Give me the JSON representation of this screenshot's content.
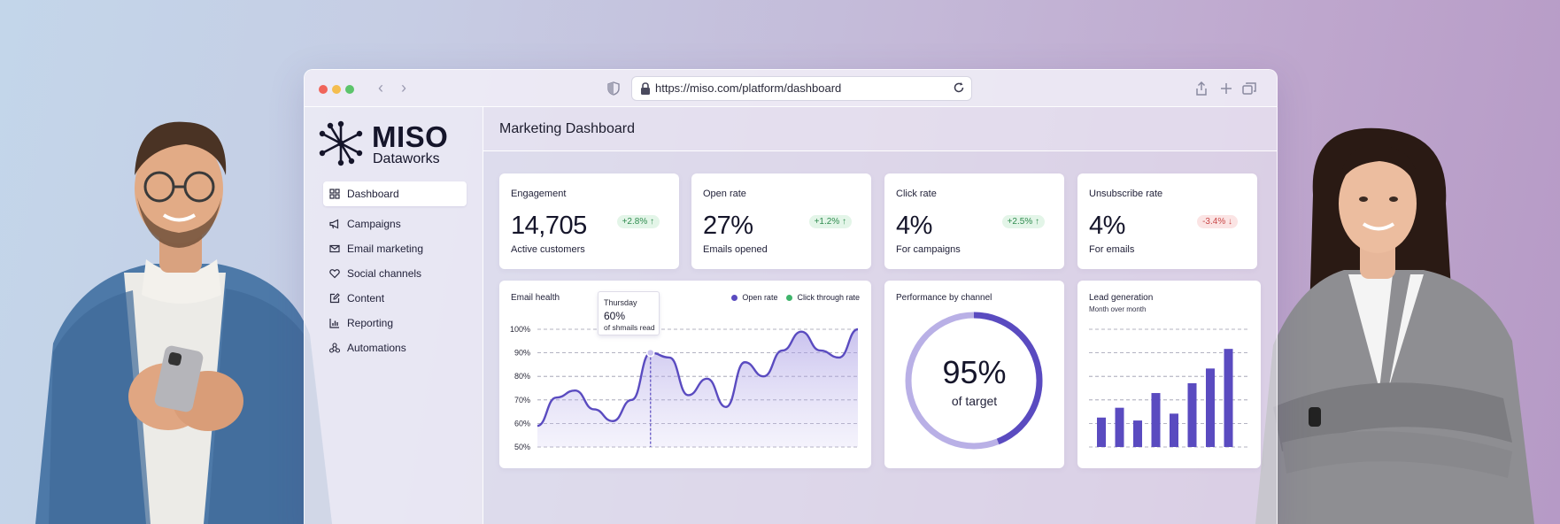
{
  "browser": {
    "url": "https://miso.com/platform/dashboard"
  },
  "brand": {
    "name": "MISO",
    "subtitle": "Dataworks"
  },
  "sidebar": {
    "items": [
      {
        "label": "Dashboard",
        "icon": "grid-icon",
        "active": true
      },
      {
        "label": "Campaigns",
        "icon": "megaphone-icon"
      },
      {
        "label": "Email marketing",
        "icon": "envelope-icon"
      },
      {
        "label": "Social channels",
        "icon": "heart-icon"
      },
      {
        "label": "Content",
        "icon": "edit-icon"
      },
      {
        "label": "Reporting",
        "icon": "bar-chart-icon"
      },
      {
        "label": "Automations",
        "icon": "nodes-icon"
      }
    ]
  },
  "header": {
    "title": "Marketing Dashboard"
  },
  "stats": [
    {
      "title": "Engagement",
      "value": "14,705",
      "sub": "Active customers",
      "change": "+2.8% ↑",
      "trend": "up"
    },
    {
      "title": "Open rate",
      "value": "27%",
      "sub": "Emails opened",
      "change": "+1.2% ↑",
      "trend": "up"
    },
    {
      "title": "Click rate",
      "value": "4%",
      "sub": "For campaigns",
      "change": "+2.5% ↑",
      "trend": "up"
    },
    {
      "title": "Unsubscribe rate",
      "value": "4%",
      "sub": "For emails",
      "change": "-3.4% ↓",
      "trend": "down"
    }
  ],
  "email_health": {
    "title": "Email health",
    "legend": [
      {
        "label": "Open rate",
        "color": "#5a4bc0"
      },
      {
        "label": "Click through rate",
        "color": "#3fb46b"
      }
    ],
    "tooltip": {
      "day": "Thursday",
      "value": "60%",
      "note": "of shmails read"
    }
  },
  "performance": {
    "title": "Performance by channel",
    "value": "95%",
    "sub": "of target",
    "percent": 95
  },
  "lead_generation": {
    "title": "Lead generation",
    "subtitle": "Month over month"
  },
  "colors": {
    "accent": "#5a4bc0",
    "accent_light": "#b9b0e6",
    "up": "#2f8c4f",
    "down": "#c94848"
  },
  "chart_data": [
    {
      "type": "area",
      "title": "Email health",
      "series": [
        {
          "name": "Open rate",
          "values": [
            59,
            71,
            74,
            66,
            61,
            70,
            90,
            88,
            72,
            79,
            67,
            86,
            80,
            91,
            99,
            91,
            88,
            100
          ]
        }
      ],
      "y_ticks": [
        "100%",
        "90%",
        "80%",
        "70%",
        "60%",
        "50%"
      ],
      "ylim": [
        50,
        100
      ],
      "grid": true,
      "legend": "top-right"
    },
    {
      "type": "pie",
      "title": "Performance by channel",
      "values": [
        95,
        5
      ]
    },
    {
      "type": "bar",
      "title": "Lead generation",
      "values": [
        30,
        40,
        27,
        55,
        34,
        65,
        80,
        100
      ],
      "ylim": [
        0,
        120
      ],
      "grid": true
    }
  ]
}
